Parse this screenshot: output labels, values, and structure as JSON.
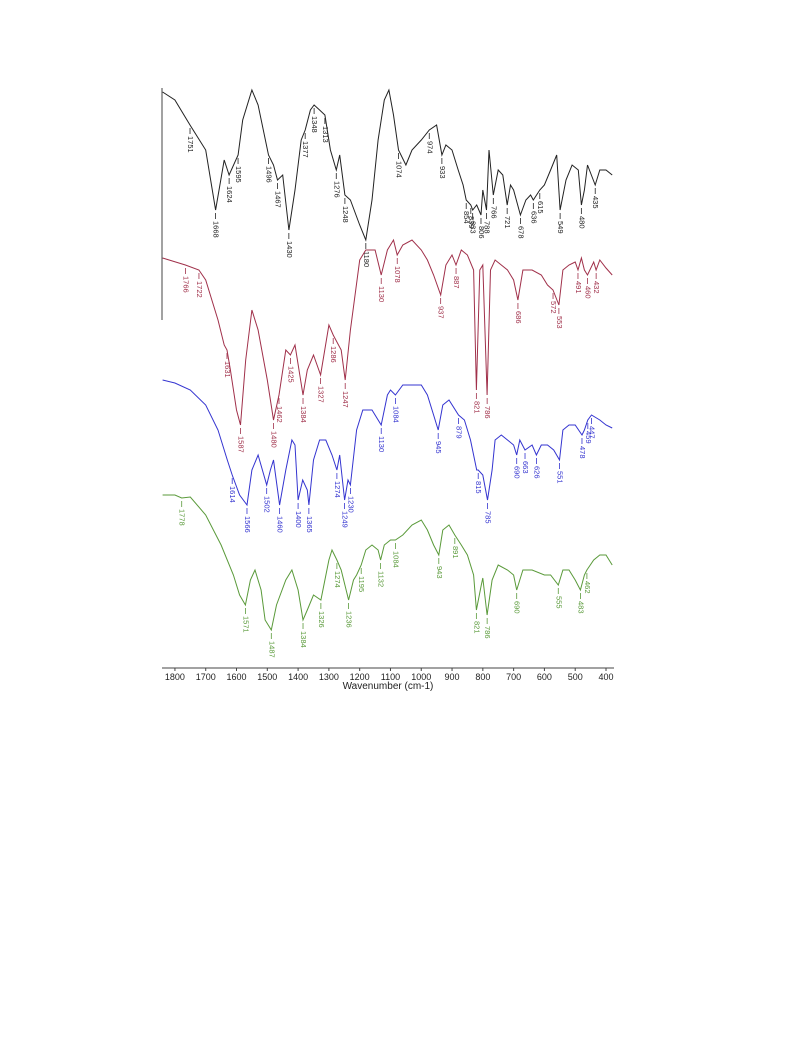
{
  "chart_data": {
    "type": "line",
    "x_label": "Wavenumber (cm-1)",
    "xlim": [
      1842,
      374
    ],
    "ylim": [
      0,
      580
    ],
    "xticks": [
      1800,
      1700,
      1600,
      1500,
      1400,
      1300,
      1200,
      1100,
      1000,
      900,
      800,
      700,
      600,
      500,
      400
    ],
    "series": [
      {
        "color": "#222222",
        "x": [
          1840,
          1800,
          1751,
          1700,
          1668,
          1640,
          1624,
          1595,
          1580,
          1550,
          1530,
          1496,
          1480,
          1467,
          1450,
          1430,
          1410,
          1390,
          1377,
          1360,
          1348,
          1330,
          1313,
          1295,
          1276,
          1265,
          1248,
          1230,
          1200,
          1180,
          1160,
          1140,
          1120,
          1105,
          1090,
          1074,
          1050,
          1030,
          1000,
          974,
          950,
          933,
          920,
          900,
          880,
          864,
          854,
          839,
          833,
          820,
          806,
          800,
          788,
          780,
          766,
          750,
          735,
          721,
          710,
          700,
          678,
          660,
          645,
          636,
          615,
          600,
          580,
          560,
          549,
          530,
          510,
          490,
          480,
          470,
          460,
          435,
          420,
          400,
          380
        ],
        "values": [
          576,
          568,
          543,
          518,
          458,
          508,
          493,
          513,
          548,
          578,
          563,
          513,
          503,
          488,
          493,
          438,
          478,
          528,
          538,
          558,
          563,
          558,
          553,
          518,
          498,
          513,
          473,
          468,
          443,
          428,
          468,
          528,
          568,
          578,
          553,
          518,
          503,
          518,
          528,
          538,
          543,
          513,
          523,
          518,
          498,
          483,
          468,
          463,
          458,
          463,
          453,
          478,
          458,
          518,
          473,
          498,
          493,
          463,
          483,
          478,
          453,
          468,
          473,
          468,
          478,
          483,
          498,
          513,
          458,
          488,
          503,
          498,
          463,
          478,
          503,
          483,
          498,
          498,
          493
        ],
        "peaks": [
          1751,
          1668,
          1624,
          1595,
          1496,
          1467,
          1430,
          1377,
          1348,
          1313,
          1276,
          1248,
          1180,
          1074,
          974,
          933,
          854,
          839,
          833,
          806,
          788,
          766,
          721,
          678,
          636,
          615,
          549,
          480,
          435
        ]
      },
      {
        "color": "#a0304a",
        "x": [
          1840,
          1766,
          1722,
          1700,
          1660,
          1640,
          1631,
          1620,
          1600,
          1587,
          1570,
          1550,
          1530,
          1500,
          1480,
          1462,
          1440,
          1425,
          1410,
          1384,
          1370,
          1350,
          1327,
          1300,
          1286,
          1260,
          1247,
          1230,
          1200,
          1180,
          1150,
          1130,
          1110,
          1090,
          1078,
          1060,
          1030,
          1000,
          980,
          960,
          937,
          920,
          900,
          887,
          870,
          850,
          830,
          821,
          810,
          800,
          786,
          775,
          760,
          740,
          720,
          700,
          686,
          670,
          640,
          610,
          590,
          572,
          553,
          540,
          520,
          500,
          491,
          480,
          470,
          460,
          440,
          432,
          420,
          400,
          380
        ],
        "values": [
          410,
          403,
          398,
          388,
          348,
          323,
          318,
          298,
          258,
          243,
          308,
          358,
          338,
          288,
          248,
          273,
          318,
          313,
          323,
          273,
          298,
          313,
          293,
          343,
          333,
          318,
          288,
          338,
          408,
          418,
          418,
          393,
          418,
          428,
          413,
          423,
          428,
          418,
          408,
          393,
          373,
          403,
          413,
          403,
          418,
          413,
          398,
          278,
          398,
          403,
          273,
          398,
          408,
          403,
          398,
          388,
          368,
          398,
          398,
          393,
          383,
          378,
          363,
          398,
          403,
          406,
          398,
          410,
          398,
          393,
          406,
          398,
          408,
          400,
          393
        ],
        "peaks": [
          1766,
          1722,
          1631,
          1587,
          1480,
          1462,
          1425,
          1384,
          1327,
          1286,
          1247,
          1130,
          1078,
          937,
          887,
          821,
          786,
          686,
          572,
          553,
          491,
          460,
          432
        ]
      },
      {
        "color": "#3434d0",
        "x": [
          1840,
          1800,
          1750,
          1700,
          1660,
          1630,
          1614,
          1590,
          1566,
          1550,
          1530,
          1502,
          1490,
          1480,
          1460,
          1440,
          1420,
          1410,
          1400,
          1385,
          1370,
          1365,
          1350,
          1330,
          1310,
          1290,
          1274,
          1265,
          1249,
          1238,
          1230,
          1210,
          1190,
          1160,
          1130,
          1110,
          1100,
          1084,
          1060,
          1030,
          1000,
          980,
          960,
          945,
          930,
          910,
          879,
          860,
          840,
          820,
          815,
          800,
          785,
          770,
          760,
          740,
          720,
          700,
          690,
          680,
          663,
          640,
          626,
          610,
          590,
          570,
          551,
          540,
          520,
          500,
          478,
          470,
          459,
          447,
          420,
          400,
          380
        ],
        "values": [
          288,
          285,
          278,
          263,
          238,
          208,
          193,
          173,
          163,
          198,
          213,
          183,
          198,
          208,
          163,
          198,
          228,
          223,
          168,
          188,
          178,
          163,
          208,
          228,
          228,
          213,
          198,
          213,
          168,
          188,
          183,
          238,
          258,
          258,
          243,
          273,
          278,
          273,
          283,
          283,
          283,
          273,
          253,
          238,
          263,
          268,
          253,
          248,
          228,
          198,
          198,
          193,
          168,
          198,
          228,
          233,
          228,
          223,
          213,
          228,
          218,
          223,
          213,
          223,
          223,
          218,
          208,
          238,
          243,
          243,
          233,
          238,
          248,
          253,
          248,
          243,
          240
        ],
        "peaks": [
          1614,
          1566,
          1502,
          1460,
          1400,
          1365,
          1274,
          1249,
          1230,
          1130,
          1084,
          945,
          879,
          815,
          785,
          690,
          663,
          626,
          551,
          478,
          459,
          447
        ]
      },
      {
        "color": "#5a9a3a",
        "x": [
          1840,
          1800,
          1778,
          1750,
          1700,
          1650,
          1610,
          1590,
          1571,
          1555,
          1540,
          1520,
          1507,
          1487,
          1470,
          1440,
          1420,
          1400,
          1384,
          1370,
          1350,
          1326,
          1300,
          1290,
          1274,
          1260,
          1236,
          1220,
          1210,
          1195,
          1180,
          1160,
          1140,
          1132,
          1120,
          1100,
          1084,
          1060,
          1030,
          1000,
          980,
          960,
          943,
          930,
          910,
          891,
          870,
          850,
          830,
          821,
          805,
          800,
          786,
          770,
          750,
          720,
          700,
          690,
          670,
          640,
          600,
          580,
          555,
          540,
          520,
          500,
          483,
          470,
          462,
          440,
          420,
          400,
          380
        ],
        "values": [
          173,
          173,
          170,
          171,
          153,
          123,
          93,
          73,
          63,
          88,
          98,
          78,
          48,
          38,
          63,
          88,
          98,
          78,
          48,
          58,
          73,
          68,
          108,
          118,
          108,
          98,
          68,
          88,
          93,
          103,
          118,
          123,
          118,
          108,
          123,
          128,
          128,
          133,
          143,
          148,
          138,
          123,
          113,
          138,
          143,
          133,
          123,
          113,
          93,
          58,
          83,
          90,
          53,
          88,
          103,
          98,
          93,
          78,
          98,
          98,
          93,
          93,
          83,
          98,
          98,
          88,
          78,
          93,
          98,
          108,
          113,
          113,
          103
        ],
        "peaks": [
          1778,
          1571,
          1487,
          1384,
          1326,
          1274,
          1236,
          1195,
          1132,
          1084,
          943,
          891,
          821,
          786,
          690,
          555,
          483,
          462
        ]
      }
    ]
  }
}
